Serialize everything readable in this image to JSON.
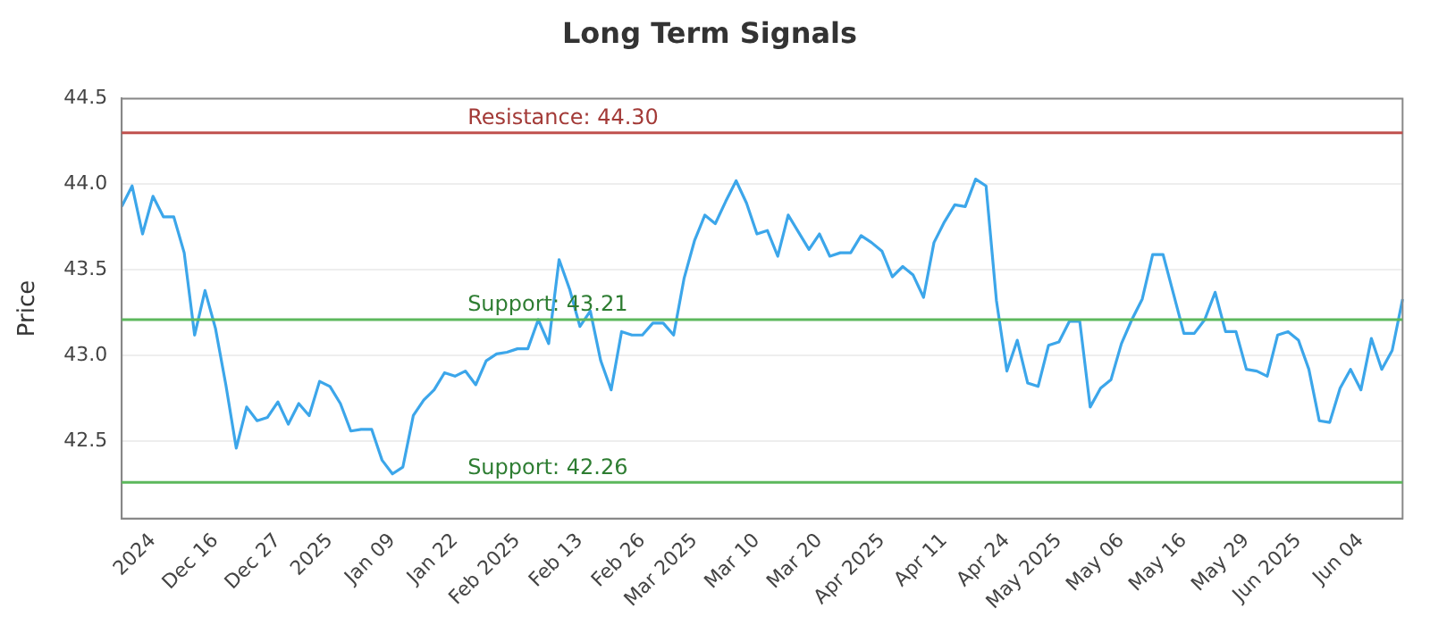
{
  "chart_data": {
    "type": "line",
    "title": "Long Term Signals",
    "ylabel": "Price",
    "categories": [
      null,
      null,
      null,
      "2024",
      null,
      null,
      null,
      null,
      null,
      "Dec 16",
      null,
      null,
      null,
      null,
      null,
      "Dec 27",
      null,
      null,
      null,
      null,
      "2025",
      null,
      null,
      null,
      null,
      null,
      "Jan 09",
      null,
      null,
      null,
      null,
      null,
      "Jan 22",
      null,
      null,
      null,
      null,
      null,
      "Feb 2025",
      null,
      null,
      null,
      null,
      null,
      "Feb 13",
      null,
      null,
      null,
      null,
      null,
      "Feb 26",
      null,
      null,
      null,
      null,
      "Mar 2025",
      null,
      null,
      null,
      null,
      null,
      "Mar 10",
      null,
      null,
      null,
      null,
      null,
      "Mar 20",
      null,
      null,
      null,
      null,
      null,
      "Apr 2025",
      null,
      null,
      null,
      null,
      null,
      "Apr 11",
      null,
      null,
      null,
      null,
      null,
      "Apr 24",
      null,
      null,
      null,
      null,
      "May 2025",
      null,
      null,
      null,
      null,
      null,
      "May 06",
      null,
      null,
      null,
      null,
      null,
      "May 16",
      null,
      null,
      null,
      null,
      null,
      "May 29",
      null,
      null,
      null,
      null,
      "Jun 2025",
      null,
      null,
      null,
      null,
      null,
      "Jun 04",
      null,
      null,
      null,
      null
    ],
    "series": [
      {
        "color": "#3ca6ea",
        "values": [
          43.87,
          43.99,
          43.71,
          43.93,
          43.81,
          43.81,
          43.6,
          43.12,
          43.38,
          43.16,
          42.83,
          42.46,
          42.7,
          42.62,
          42.64,
          42.73,
          42.6,
          42.72,
          42.65,
          42.85,
          42.82,
          42.72,
          42.56,
          42.57,
          42.57,
          42.39,
          42.31,
          42.35,
          42.65,
          42.74,
          42.8,
          42.9,
          42.88,
          42.91,
          42.83,
          42.97,
          43.01,
          43.02,
          43.04,
          43.04,
          43.21,
          43.07,
          43.56,
          43.39,
          43.17,
          43.26,
          42.97,
          42.8,
          43.14,
          43.12,
          43.12,
          43.19,
          43.19,
          43.12,
          43.45,
          43.67,
          43.82,
          43.77,
          43.9,
          44.02,
          43.89,
          43.71,
          43.73,
          43.58,
          43.82,
          43.72,
          43.62,
          43.71,
          43.58,
          43.6,
          43.6,
          43.7,
          43.66,
          43.61,
          43.46,
          43.52,
          43.47,
          43.34,
          43.66,
          43.78,
          43.88,
          43.87,
          44.03,
          43.99,
          43.32,
          42.91,
          43.09,
          42.84,
          42.82,
          43.06,
          43.08,
          43.2,
          43.2,
          42.7,
          42.81,
          42.86,
          43.07,
          43.21,
          43.33,
          43.59,
          43.59,
          43.36,
          43.13,
          43.13,
          43.21,
          43.37,
          43.14,
          43.14,
          42.92,
          42.91,
          42.88,
          43.12,
          43.14,
          43.09,
          42.92,
          42.62,
          42.61,
          42.81,
          42.92,
          42.8,
          43.1,
          42.92,
          43.03,
          43.33
        ]
      }
    ],
    "ylim": [
      42.05,
      44.5
    ],
    "yticks": [
      42.5,
      {
        "value": 43,
        "label": "43.0"
      },
      43.5,
      {
        "value": 44,
        "label": "44.0"
      },
      44.5
    ],
    "ref_lines": [
      {
        "axis": "y",
        "value": 44.3,
        "label": "Resistance: 44.30",
        "color": "#c0504d"
      },
      {
        "axis": "y",
        "value": 43.21,
        "label": "Support: 43.21",
        "color": "#5cb85c"
      },
      {
        "axis": "y",
        "value": 42.26,
        "label": "Support: 42.26",
        "color": "#5cb85c"
      }
    ],
    "grid": "y",
    "legend": false,
    "marker": "none",
    "line_style": "solid"
  }
}
